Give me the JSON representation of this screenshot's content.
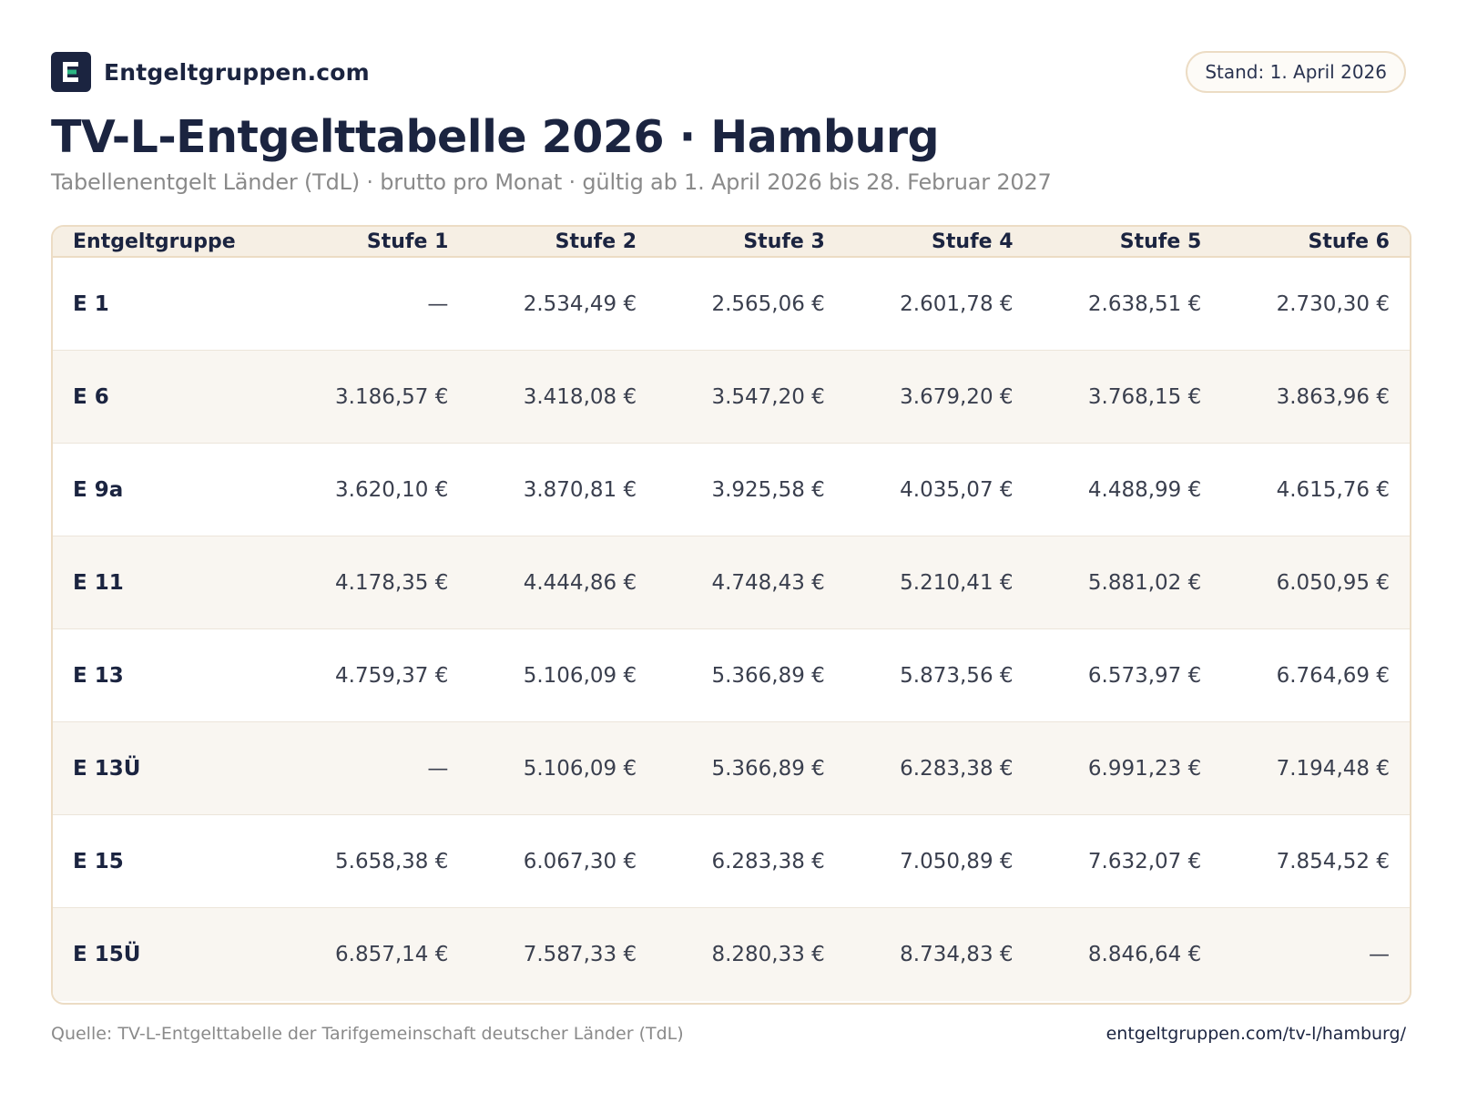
{
  "brand": {
    "name": "Entgeltgruppen.com",
    "logo_letter": "E",
    "icon": "entgeltgruppen-logo-icon"
  },
  "stand": "Stand: 1. April 2026",
  "title": "TV-L-Entgelttabelle 2026 · Hamburg",
  "subtitle": "Tabellenentgelt Länder (TdL) · brutto pro Monat · gültig ab 1. April 2026 bis 28. Februar 2027",
  "table": {
    "headers": [
      "Entgeltgruppe",
      "Stufe 1",
      "Stufe 2",
      "Stufe 3",
      "Stufe 4",
      "Stufe 5",
      "Stufe 6"
    ],
    "rows": [
      {
        "group": "E 1",
        "values": [
          "—",
          "2.534,49 €",
          "2.565,06 €",
          "2.601,78 €",
          "2.638,51 €",
          "2.730,30 €"
        ]
      },
      {
        "group": "E 6",
        "values": [
          "3.186,57 €",
          "3.418,08 €",
          "3.547,20 €",
          "3.679,20 €",
          "3.768,15 €",
          "3.863,96 €"
        ]
      },
      {
        "group": "E 9a",
        "values": [
          "3.620,10 €",
          "3.870,81 €",
          "3.925,58 €",
          "4.035,07 €",
          "4.488,99 €",
          "4.615,76 €"
        ]
      },
      {
        "group": "E 11",
        "values": [
          "4.178,35 €",
          "4.444,86 €",
          "4.748,43 €",
          "5.210,41 €",
          "5.881,02 €",
          "6.050,95 €"
        ]
      },
      {
        "group": "E 13",
        "values": [
          "4.759,37 €",
          "5.106,09 €",
          "5.366,89 €",
          "5.873,56 €",
          "6.573,97 €",
          "6.764,69 €"
        ]
      },
      {
        "group": "E 13Ü",
        "values": [
          "—",
          "5.106,09 €",
          "5.366,89 €",
          "6.283,38 €",
          "6.991,23 €",
          "7.194,48 €"
        ]
      },
      {
        "group": "E 15",
        "values": [
          "5.658,38 €",
          "6.067,30 €",
          "6.283,38 €",
          "7.050,89 €",
          "7.632,07 €",
          "7.854,52 €"
        ]
      },
      {
        "group": "E 15Ü",
        "values": [
          "6.857,14 €",
          "7.587,33 €",
          "8.280,33 €",
          "8.734,83 €",
          "8.846,64 €",
          "—"
        ]
      }
    ]
  },
  "footer": {
    "source": "Quelle: TV-L-Entgelttabelle der Tarifgemeinschaft deutscher Länder (TdL)",
    "url": "entgeltgruppen.com/tv-l/hamburg/"
  },
  "colors": {
    "navy": "#1b2440",
    "accent_green": "#2bb583",
    "border": "#ecdcc4",
    "header_bg": "#f6efe4",
    "alt_row_bg": "#f9f6f1"
  }
}
